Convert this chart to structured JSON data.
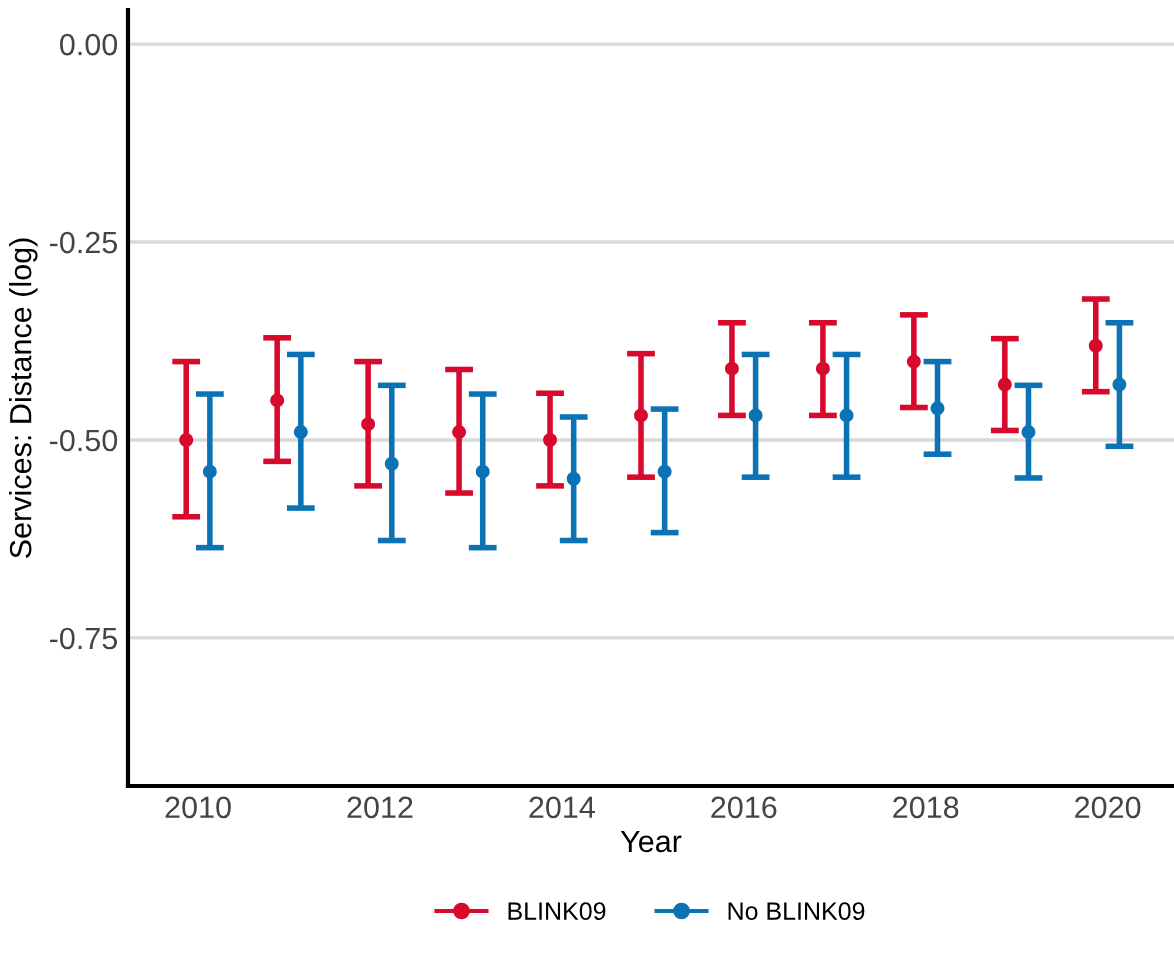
{
  "chart_data": {
    "type": "scatter",
    "xlabel": "Year",
    "ylabel": "Services: Distance (log)",
    "series": [
      {
        "name": "BLINK09",
        "color": "#d7092c",
        "x": [
          2009.87,
          2010.87,
          2011.87,
          2012.87,
          2013.87,
          2014.87,
          2015.87,
          2016.87,
          2017.87,
          2018.87,
          2019.87
        ],
        "values": [
          -0.5,
          -0.45,
          -0.48,
          -0.49,
          -0.5,
          -0.469,
          -0.41,
          -0.41,
          -0.401,
          -0.43,
          -0.381
        ],
        "errors": [
          [
            -0.597,
            -0.401
          ],
          [
            -0.527,
            -0.371
          ],
          [
            -0.558,
            -0.401
          ],
          [
            -0.567,
            -0.411
          ],
          [
            -0.558,
            -0.441
          ],
          [
            -0.547,
            -0.391
          ],
          [
            -0.469,
            -0.352
          ],
          [
            -0.469,
            -0.352
          ],
          [
            -0.459,
            -0.342
          ],
          [
            -0.488,
            -0.372
          ],
          [
            -0.439,
            -0.322
          ]
        ]
      },
      {
        "name": "No BLINK09",
        "color": "#0b72b5",
        "x": [
          2010.13,
          2011.13,
          2012.13,
          2013.13,
          2014.13,
          2015.13,
          2016.13,
          2017.13,
          2018.13,
          2019.13,
          2020.13
        ],
        "values": [
          -0.54,
          -0.49,
          -0.53,
          -0.54,
          -0.549,
          -0.54,
          -0.469,
          -0.469,
          -0.46,
          -0.49,
          -0.43
        ],
        "errors": [
          [
            -0.636,
            -0.442
          ],
          [
            -0.586,
            -0.392
          ],
          [
            -0.627,
            -0.431
          ],
          [
            -0.636,
            -0.442
          ],
          [
            -0.627,
            -0.471
          ],
          [
            -0.617,
            -0.461
          ],
          [
            -0.547,
            -0.392
          ],
          [
            -0.547,
            -0.392
          ],
          [
            -0.518,
            -0.401
          ],
          [
            -0.548,
            -0.431
          ],
          [
            -0.508,
            -0.352
          ]
        ]
      }
    ],
    "xlim": [
      2009.23,
      2020.73
    ],
    "xticks": [
      2010,
      2012,
      2014,
      2016,
      2018,
      2020
    ],
    "ylim": [
      -0.937,
      0.043
    ],
    "yticks": [
      {
        "value": 0,
        "label": "0.00"
      },
      {
        "value": -0.25,
        "label": "-0.25"
      },
      {
        "value": -0.5,
        "label": "-0.50"
      },
      {
        "value": -0.75,
        "label": "-0.75"
      }
    ],
    "grid": "y",
    "legend": "bottom",
    "marker": "circle"
  }
}
